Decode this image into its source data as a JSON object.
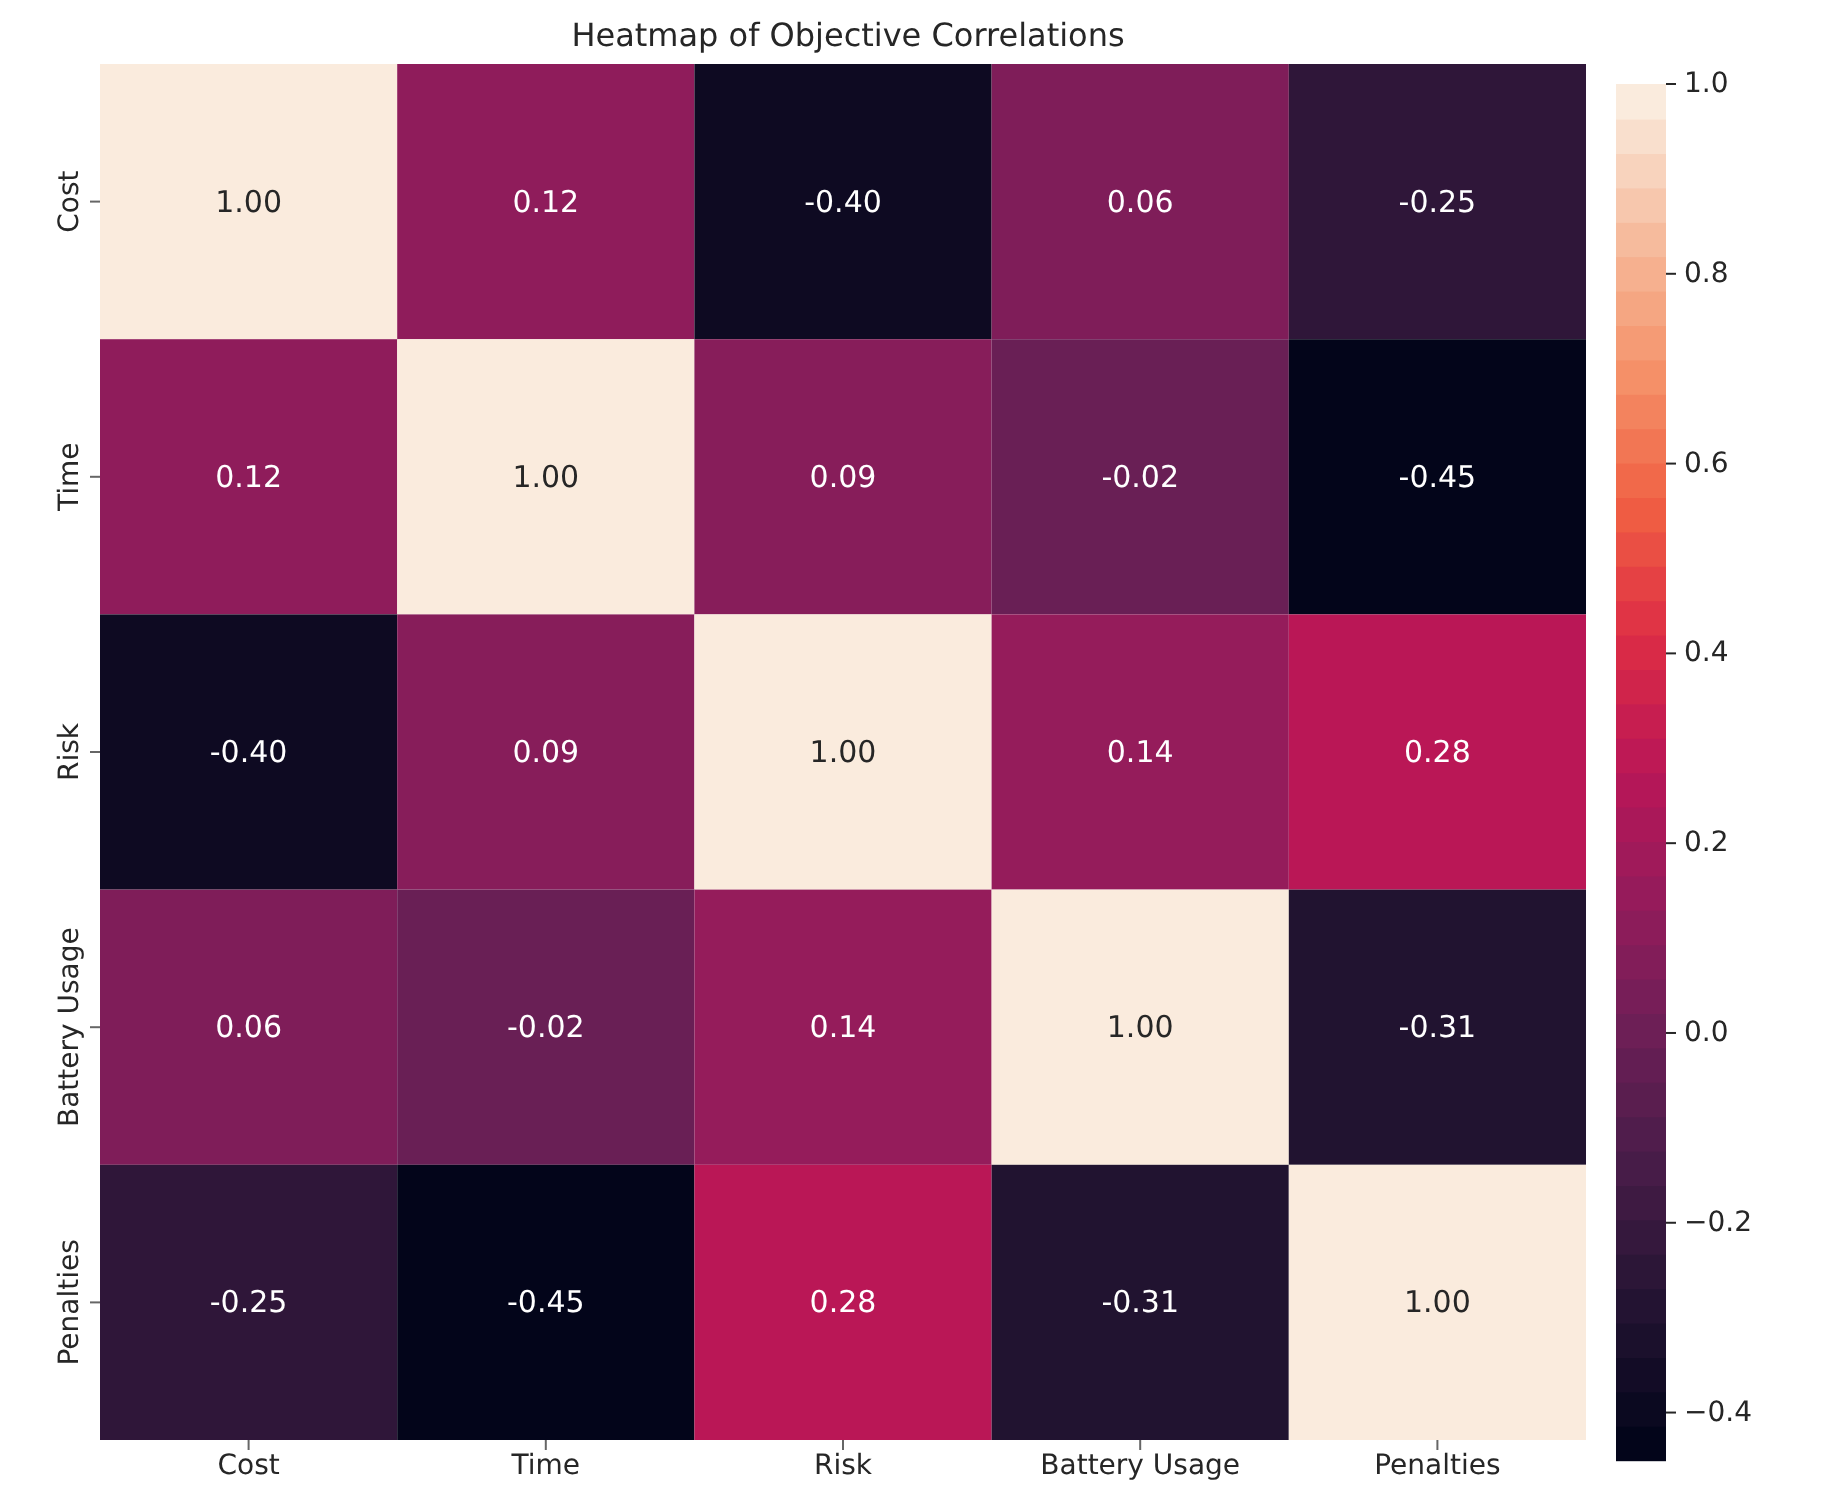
{
  "chart_data": {
    "type": "heatmap",
    "title": "Heatmap of Objective Correlations",
    "categories": [
      "Cost",
      "Time",
      "Risk",
      "Battery Usage",
      "Penalties"
    ],
    "y_categories": [
      "Cost",
      "Time",
      "Risk",
      "Battery Usage",
      "Penalties"
    ],
    "cells": [
      [
        1.0,
        0.12,
        -0.4,
        0.06,
        -0.25
      ],
      [
        0.12,
        1.0,
        0.09,
        -0.02,
        -0.45
      ],
      [
        -0.4,
        0.09,
        1.0,
        0.14,
        0.28
      ],
      [
        0.06,
        -0.02,
        0.14,
        1.0,
        -0.31
      ],
      [
        -0.25,
        -0.45,
        0.28,
        -0.31,
        1.0
      ]
    ],
    "data_labels": true,
    "cell_labels": [
      [
        "1.00",
        "0.12",
        "-0.40",
        "0.06",
        "-0.25"
      ],
      [
        "0.12",
        "1.00",
        "0.09",
        "-0.02",
        "-0.45"
      ],
      [
        "-0.40",
        "0.09",
        "1.00",
        "0.14",
        "0.28"
      ],
      [
        "0.06",
        "-0.02",
        "0.14",
        "1.00",
        "-0.31"
      ],
      [
        "-0.25",
        "-0.45",
        "0.28",
        "-0.31",
        "1.00"
      ]
    ],
    "clim": [
      -0.45,
      1.0
    ],
    "cticks": [
      {
        "value": -0.4,
        "label": "−0.4"
      },
      {
        "value": -0.2,
        "label": "−0.2"
      },
      {
        "value": 0,
        "label": "0.0"
      },
      {
        "value": 0.2,
        "label": "0.2"
      },
      {
        "value": 0.4,
        "label": "0.4"
      },
      {
        "value": 0.6,
        "label": "0.6"
      },
      {
        "value": 0.8,
        "label": "0.8"
      },
      {
        "value": 1,
        "label": "1.0"
      }
    ]
  }
}
